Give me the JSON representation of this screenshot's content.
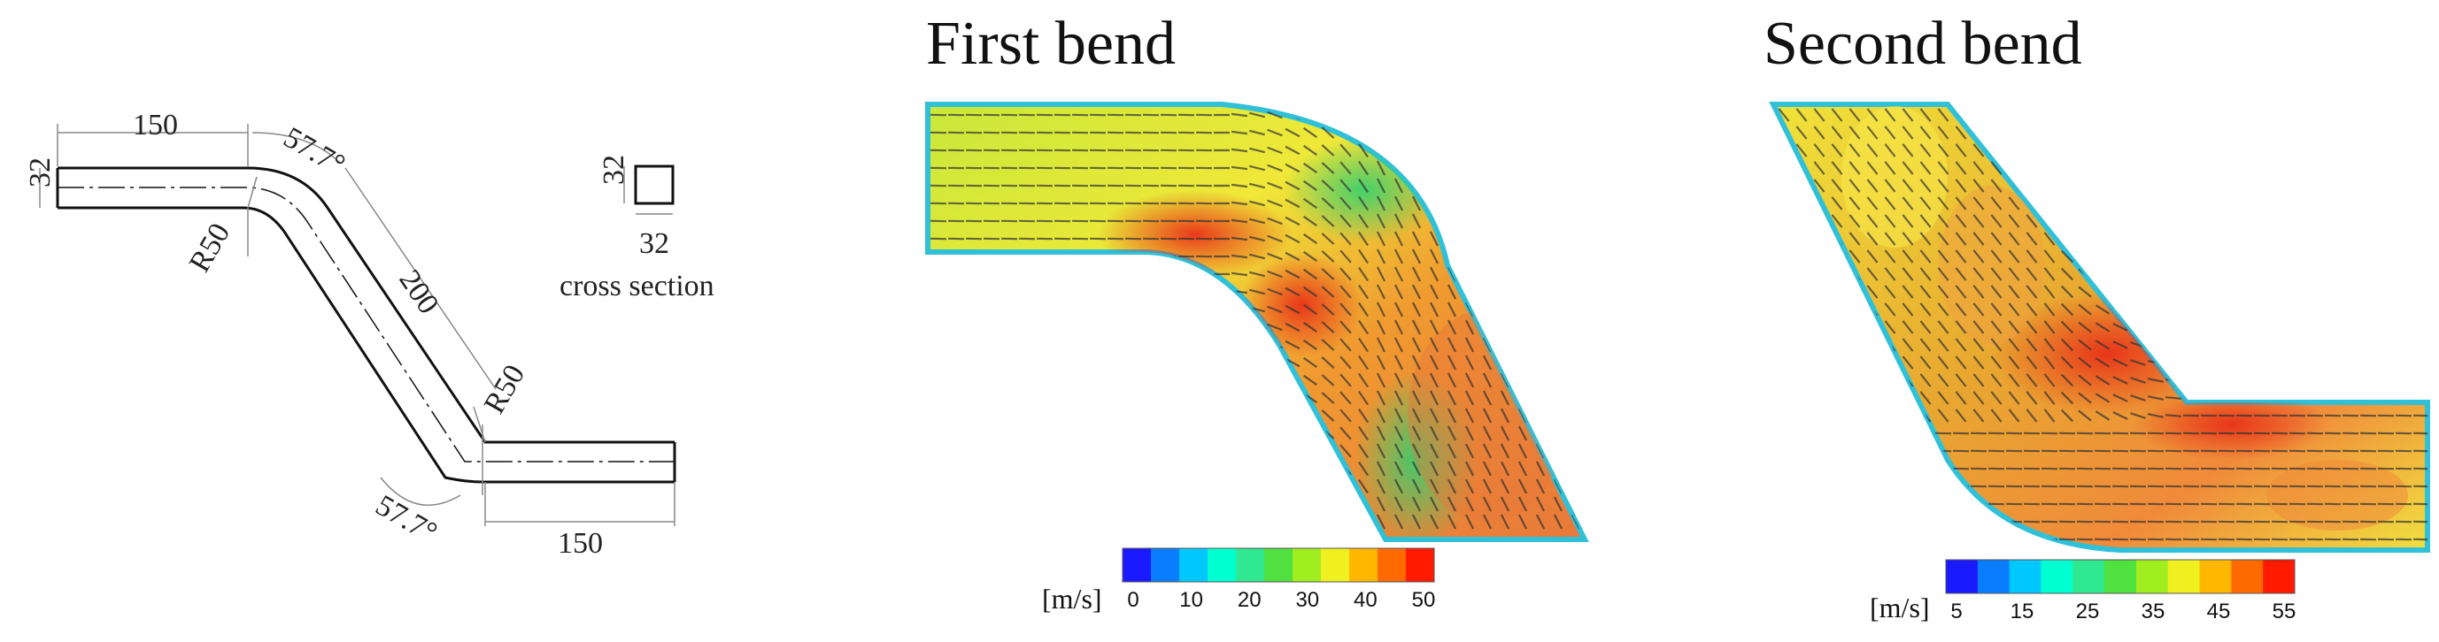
{
  "schematic": {
    "dim_len_left": "150",
    "dim_height": "32",
    "dim_angle_top": "57.7°",
    "dim_radius_top": "R50",
    "dim_len_mid": "200",
    "dim_radius_bottom": "R50",
    "dim_angle_bottom": "57.7°",
    "dim_len_right": "150",
    "cross_section": {
      "dim_side": "32",
      "dim_bottom": "32",
      "label": "cross section"
    }
  },
  "panels": [
    {
      "title": "First bend",
      "colorbar": {
        "unit_label": "[m/s]",
        "ticks": [
          "0",
          "10",
          "20",
          "30",
          "40",
          "50"
        ],
        "colors": [
          "#1a1aff",
          "#0a7dff",
          "#00c8ff",
          "#00ffd0",
          "#30e890",
          "#50e040",
          "#a0ee20",
          "#f0f020",
          "#ffb800",
          "#ff6a00",
          "#ff1a00"
        ]
      }
    },
    {
      "title": "Second bend",
      "colorbar": {
        "unit_label": "[m/s]",
        "ticks": [
          "5",
          "15",
          "25",
          "35",
          "45",
          "55"
        ],
        "colors": [
          "#1a1aff",
          "#0a7dff",
          "#00c8ff",
          "#00ffd0",
          "#30e890",
          "#50e040",
          "#a0ee20",
          "#f0f020",
          "#ffb800",
          "#ff6a00",
          "#ff1a00"
        ]
      }
    }
  ]
}
